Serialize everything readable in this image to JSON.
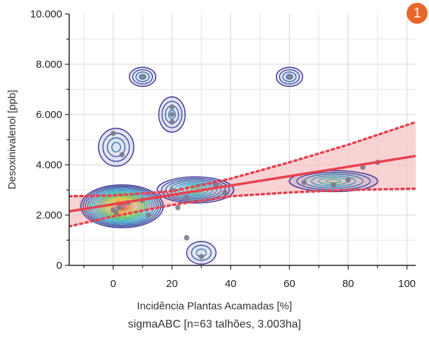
{
  "badge": "1",
  "chart_data": {
    "type": "scatter",
    "title": "",
    "xlabel": "Incidência Plantas Acamadas [%]",
    "ylabel": "Desoxinivalenol [ppb]",
    "subtitle": "sigmaABC [n=63 talhões, 3.003ha]",
    "xlim": [
      -15,
      103
    ],
    "ylim": [
      0,
      10000
    ],
    "xticks": [
      0,
      20,
      40,
      60,
      80,
      100
    ],
    "yticks": [
      0,
      2000,
      4000,
      6000,
      8000,
      10000
    ],
    "xtick_labels": [
      "0",
      "20",
      "40",
      "60",
      "80",
      "100"
    ],
    "ytick_labels": [
      "0",
      "2.000",
      "4.000",
      "6.000",
      "8.000",
      "10.000"
    ],
    "grid": true,
    "points": [
      {
        "x": 0,
        "y": 5250
      },
      {
        "x": 3,
        "y": 4400
      },
      {
        "x": 10,
        "y": 7500
      },
      {
        "x": 20,
        "y": 6000
      },
      {
        "x": 20,
        "y": 5700
      },
      {
        "x": 20,
        "y": 6300
      },
      {
        "x": 60,
        "y": 7500
      },
      {
        "x": 0,
        "y": 2200
      },
      {
        "x": 2,
        "y": 2300
      },
      {
        "x": 1,
        "y": 2100
      },
      {
        "x": 5,
        "y": 2500
      },
      {
        "x": 10,
        "y": 2600
      },
      {
        "x": 12,
        "y": 2000
      },
      {
        "x": 20,
        "y": 3000
      },
      {
        "x": 22,
        "y": 2300
      },
      {
        "x": 25,
        "y": 2700
      },
      {
        "x": 35,
        "y": 3200
      },
      {
        "x": 38,
        "y": 2900
      },
      {
        "x": 30,
        "y": 350
      },
      {
        "x": 25,
        "y": 1100
      },
      {
        "x": 65,
        "y": 3300
      },
      {
        "x": 75,
        "y": 3200
      },
      {
        "x": 80,
        "y": 3400
      },
      {
        "x": 85,
        "y": 3900
      },
      {
        "x": 90,
        "y": 4100
      }
    ],
    "density_clusters": [
      {
        "x": 3,
        "y": 2350,
        "sx": 14,
        "sy": 850,
        "levels": 18
      },
      {
        "x": 28,
        "y": 3000,
        "sx": 13,
        "sy": 520,
        "levels": 9
      },
      {
        "x": 1,
        "y": 4700,
        "sx": 6,
        "sy": 750,
        "levels": 4
      },
      {
        "x": 10,
        "y": 7500,
        "sx": 4.5,
        "sy": 380,
        "levels": 4
      },
      {
        "x": 20,
        "y": 6000,
        "sx": 4.5,
        "sy": 700,
        "levels": 4
      },
      {
        "x": 60,
        "y": 7500,
        "sx": 4.5,
        "sy": 380,
        "levels": 4
      },
      {
        "x": 30,
        "y": 500,
        "sx": 5,
        "sy": 450,
        "levels": 3
      },
      {
        "x": 75,
        "y": 3350,
        "sx": 15,
        "sy": 420,
        "levels": 6
      }
    ],
    "regression": {
      "x": [
        -15,
        103
      ],
      "y": [
        2150,
        4350
      ]
    },
    "confidence_band": {
      "x": [
        -15,
        0,
        20,
        40,
        60,
        80,
        103
      ],
      "upper": [
        2750,
        2780,
        2950,
        3450,
        4100,
        4800,
        5700
      ],
      "lower": [
        1550,
        1950,
        2400,
        2750,
        2900,
        3000,
        3050
      ]
    },
    "colors": {
      "line": "#e8404f",
      "band": "#f7c4c6",
      "contour_outer": "#3a2a8e",
      "contour_inner": "#c8202a",
      "point": "#7a7a8a"
    }
  }
}
